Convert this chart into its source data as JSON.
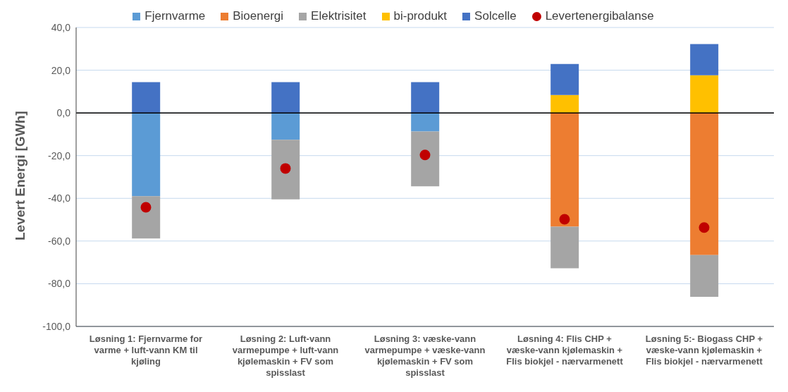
{
  "chart_data": {
    "type": "bar",
    "stacked": true,
    "ylabel": "Levert Energi [GWh]",
    "categories": [
      "Løsning 1: Fjernvarme for varme +  luft-vann KM til kjøling",
      "Løsning 2: Luft-vann varmepumpe + luft-vann kjølemaskin + FV som spisslast",
      "Løsning 3: væske-vann varmepumpe + væske-vann kjølemaskin + FV som spisslast",
      "Løsning 4: Flis CHP + væske-vann kjølemaskin + Flis biokjel - nærvarmenett",
      "Løsning 5:- Biogass CHP + væske-vann kjølemaskin + Flis biokjel - nærvarmenett"
    ],
    "series": [
      {
        "name": "Fjernvarme",
        "color": "#5b9bd5",
        "values": [
          -39.0,
          -12.6,
          -8.7,
          null,
          null
        ]
      },
      {
        "name": "Bioenergi",
        "color": "#ed7d31",
        "values": [
          null,
          null,
          null,
          -53.3,
          -66.6
        ]
      },
      {
        "name": "Elektrisitet",
        "color": "#a5a5a5",
        "values": [
          -19.8,
          -27.9,
          -25.7,
          -19.5,
          -19.5
        ]
      },
      {
        "name": "bi-produkt",
        "color": "#ffc000",
        "values": [
          null,
          null,
          null,
          8.4,
          17.6
        ]
      },
      {
        "name": "Solcelle",
        "color": "#4472c4",
        "values": [
          14.4,
          14.4,
          14.4,
          14.5,
          14.6
        ]
      },
      {
        "name": "Levertenergibalanse",
        "type": "scatter",
        "marker": "circle",
        "color": "#c00000",
        "values": [
          -44.2,
          -26.0,
          -19.7,
          -49.8,
          -53.7
        ]
      }
    ],
    "ylim": [
      -100,
      40
    ],
    "yticks": [
      {
        "value": -100,
        "label": "-100,0"
      },
      {
        "value": -80,
        "label": "-80,0"
      },
      {
        "value": -60,
        "label": "-60,0"
      },
      {
        "value": -40,
        "label": "-40,0"
      },
      {
        "value": -20,
        "label": "-20,0"
      },
      {
        "value": 0,
        "label": "0,0"
      },
      {
        "value": 20,
        "label": "20,0"
      },
      {
        "value": 40,
        "label": "40,0"
      }
    ],
    "grid": "y",
    "legend": "top",
    "ref_lines": [
      {
        "axis": "y",
        "value": 0,
        "color": "#000000"
      }
    ]
  }
}
